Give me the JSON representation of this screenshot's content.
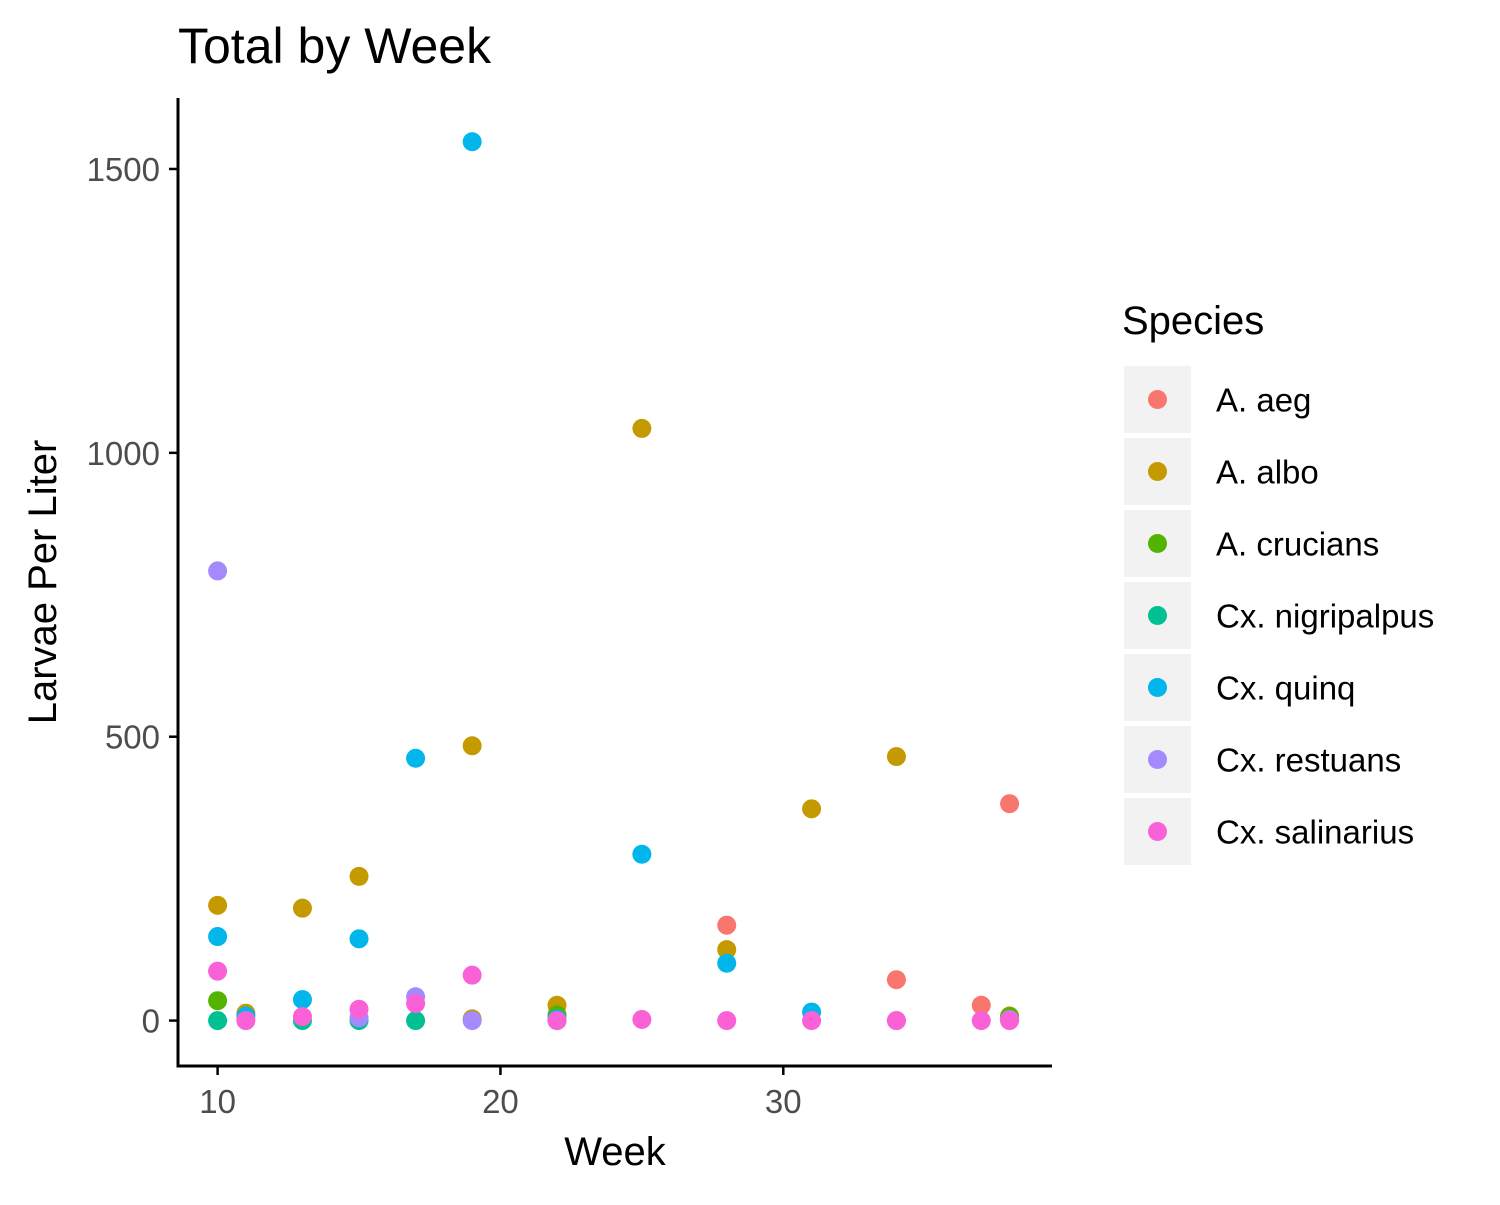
{
  "chart_data": {
    "type": "scatter",
    "title": "Total by Week",
    "xlabel": "Week",
    "ylabel": "Larvae Per Liter",
    "xlim": [
      8.6,
      39.5
    ],
    "ylim": [
      -80,
      1625
    ],
    "xticks": [
      10,
      20,
      30
    ],
    "yticks": [
      0,
      500,
      1000,
      1500
    ],
    "grid": false,
    "legend": {
      "title": "Species",
      "placement": "right"
    },
    "series": [
      {
        "name": "A. aeg",
        "color": "#F8766D",
        "points": [
          [
            28,
            168
          ],
          [
            34,
            72
          ],
          [
            37,
            27
          ],
          [
            38,
            382
          ]
        ]
      },
      {
        "name": "A. albo",
        "color": "#C49A00",
        "points": [
          [
            10,
            203
          ],
          [
            11,
            13
          ],
          [
            13,
            198
          ],
          [
            15,
            254
          ],
          [
            19,
            484
          ],
          [
            19,
            3
          ],
          [
            22,
            27
          ],
          [
            25,
            1043
          ],
          [
            28,
            125
          ],
          [
            31,
            373
          ],
          [
            34,
            465
          ],
          [
            38,
            8
          ]
        ]
      },
      {
        "name": "A. crucians",
        "color": "#53B400",
        "points": [
          [
            10,
            35
          ],
          [
            22,
            10
          ],
          [
            38,
            7
          ]
        ]
      },
      {
        "name": "Cx. nigripalpus",
        "color": "#00C094",
        "points": [
          [
            10,
            0
          ],
          [
            13,
            0
          ],
          [
            15,
            0
          ],
          [
            17,
            0
          ],
          [
            22,
            0
          ]
        ]
      },
      {
        "name": "Cx. quinq",
        "color": "#00B6EB",
        "points": [
          [
            10,
            148
          ],
          [
            11,
            8
          ],
          [
            13,
            37
          ],
          [
            15,
            144
          ],
          [
            17,
            462
          ],
          [
            19,
            1548
          ],
          [
            22,
            3
          ],
          [
            25,
            293
          ],
          [
            28,
            101
          ],
          [
            31,
            15
          ]
        ]
      },
      {
        "name": "Cx. restuans",
        "color": "#A58AFF",
        "points": [
          [
            10,
            792
          ],
          [
            15,
            5
          ],
          [
            17,
            42
          ],
          [
            19,
            0
          ],
          [
            34,
            0
          ],
          [
            38,
            2
          ]
        ]
      },
      {
        "name": "Cx. salinarius",
        "color": "#FB61D7",
        "points": [
          [
            10,
            87
          ],
          [
            11,
            0
          ],
          [
            13,
            7
          ],
          [
            15,
            20
          ],
          [
            17,
            30
          ],
          [
            19,
            80
          ],
          [
            22,
            0
          ],
          [
            25,
            2
          ],
          [
            28,
            0
          ],
          [
            31,
            0
          ],
          [
            34,
            0
          ],
          [
            37,
            0
          ],
          [
            38,
            0
          ]
        ]
      }
    ]
  }
}
